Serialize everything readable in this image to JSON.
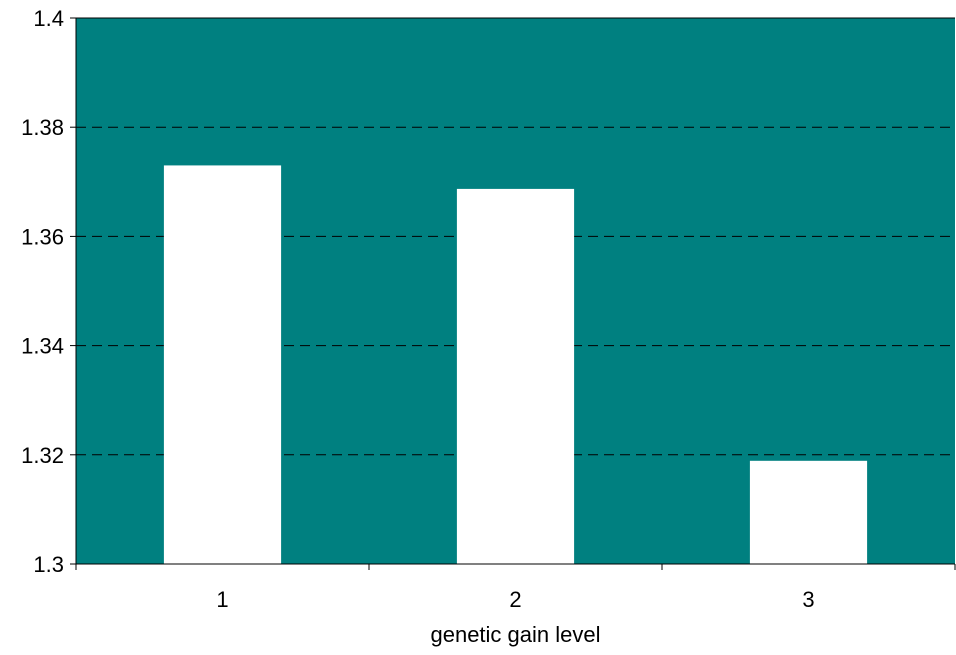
{
  "chart_data": {
    "type": "bar",
    "title": "",
    "xlabel": "genetic gain level",
    "ylabel": "",
    "categories": [
      "1",
      "2",
      "3"
    ],
    "values": [
      1.373,
      1.3687,
      1.3189
    ],
    "ylim": [
      1.3,
      1.4
    ],
    "yticks": [
      "1.3",
      "1.32",
      "1.34",
      "1.36",
      "1.38",
      "1.4"
    ],
    "grid": "horizontal dashed",
    "legend": "none",
    "colors": {
      "plot_background": "#008080",
      "bar_fill": "#ffffff",
      "gridline": "#000000",
      "axis": "#000000"
    }
  }
}
